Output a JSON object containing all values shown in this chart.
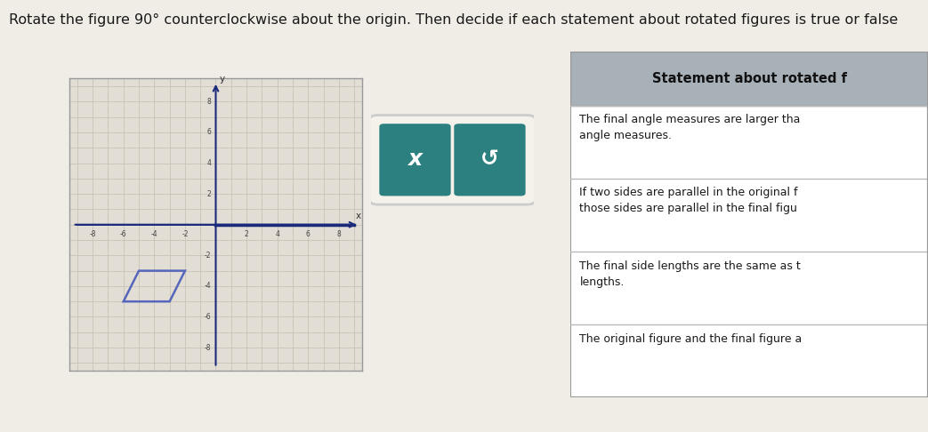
{
  "title": "Rotate the figure 90° counterclockwise about the origin. Then decide if each statement about rotated figures is true or false",
  "title_fontsize": 11.5,
  "bg_color": "#f0ede6",
  "grid_bg": "#e2ddd5",
  "parallelogram": [
    [
      -6,
      -5
    ],
    [
      -3,
      -5
    ],
    [
      -2,
      -3
    ],
    [
      -5,
      -3
    ]
  ],
  "para_color": "#5566bb",
  "axis_color": "#1a2a7a",
  "grid_color": "#c5bdb0",
  "button_color": "#2d8080",
  "button_bg": "#f0ede6",
  "button_border": "#cccccc",
  "button_x_label": "x",
  "button_undo_label": "↺",
  "table_header": "Statement about rotated f",
  "table_header_bg": "#a8b0b8",
  "table_rows": [
    "The final angle measures are larger tha\nangle measures.",
    "If two sides are parallel in the original f\nthose sides are parallel in the final figu",
    "The final side lengths are the same as t\nlengths.",
    "The original figure and the final figure a"
  ],
  "table_bg": "#ffffff",
  "table_border": "#999999",
  "table_text_color": "#1a1a1a",
  "x_ticks": [
    -8,
    -6,
    -4,
    -2,
    2,
    4,
    6,
    8
  ],
  "y_ticks": [
    -8,
    -6,
    -4,
    -2,
    2,
    4,
    6,
    8
  ],
  "axis_range": 9
}
